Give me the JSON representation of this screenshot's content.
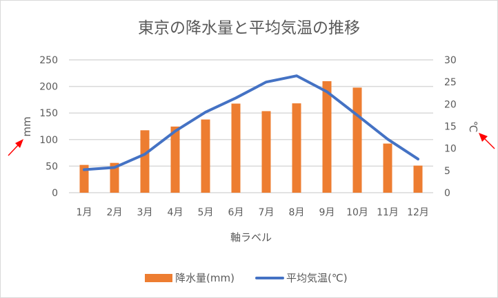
{
  "chart_data": {
    "type": "bar+line",
    "title": "東京の降水量と平均気温の推移",
    "categories": [
      "1月",
      "2月",
      "3月",
      "4月",
      "5月",
      "6月",
      "7月",
      "8月",
      "9月",
      "10月",
      "11月",
      "12月"
    ],
    "series": [
      {
        "name": "降水量(mm)",
        "type": "bar",
        "axis": "left",
        "color": "#ED7D31",
        "values": [
          52.3,
          56.1,
          117.5,
          124.5,
          137.8,
          167.7,
          153.5,
          168.2,
          209.9,
          197.8,
          92.5,
          51.0
        ]
      },
      {
        "name": "平均気温(℃)",
        "type": "line",
        "axis": "right",
        "color": "#4472C4",
        "values": [
          5.2,
          5.7,
          8.7,
          13.9,
          18.2,
          21.4,
          25.0,
          26.4,
          22.8,
          17.5,
          12.1,
          7.6
        ]
      }
    ],
    "xlabel": "軸ラベル",
    "ylabel": "mm",
    "y2label": "℃",
    "ylim": [
      0,
      250
    ],
    "yticks": [
      0,
      50,
      100,
      150,
      200,
      250
    ],
    "y2lim": [
      0,
      30
    ],
    "y2ticks": [
      0,
      5,
      10,
      15,
      20,
      25,
      30
    ],
    "grid": true,
    "legend": "bottom",
    "annotations": [
      {
        "type": "arrow",
        "color": "#FF0000",
        "points_to": "ylabel"
      },
      {
        "type": "arrow",
        "color": "#FF0000",
        "points_to": "y2label"
      }
    ]
  }
}
